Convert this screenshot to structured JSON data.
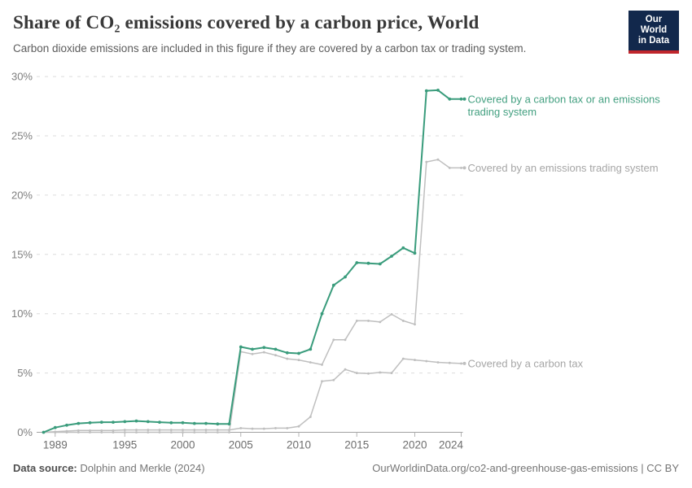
{
  "header": {
    "title": "Share of CO₂ emissions covered by a carbon price, World",
    "subtitle": "Carbon dioxide emissions are included in this figure if they are covered by a carbon tax or trading system.",
    "logo": {
      "line1": "Our World",
      "line2": "in Data"
    }
  },
  "chart_data": {
    "type": "line",
    "title": "Share of CO₂ emissions covered by a carbon price, World",
    "xlabel": "",
    "ylabel": "",
    "ylim": [
      0,
      30
    ],
    "grid": "horizontal dashed",
    "legend_position": "end-of-line labels",
    "x": [
      1988,
      1989,
      1990,
      1991,
      1992,
      1993,
      1994,
      1995,
      1996,
      1997,
      1998,
      1999,
      2000,
      2001,
      2002,
      2003,
      2004,
      2005,
      2006,
      2007,
      2008,
      2009,
      2010,
      2011,
      2012,
      2013,
      2014,
      2015,
      2016,
      2017,
      2018,
      2019,
      2020,
      2021,
      2022,
      2023,
      2024
    ],
    "xticks": [
      1989,
      1995,
      2000,
      2005,
      2010,
      2015,
      2020,
      2024
    ],
    "xtick_labels": [
      "1989",
      "1995",
      "2000",
      "2005",
      "2010",
      "2015",
      "2020",
      "2024"
    ],
    "yticks": [
      0,
      5,
      10,
      15,
      20,
      25,
      30
    ],
    "ytick_labels": [
      "0%",
      "5%",
      "10%",
      "15%",
      "20%",
      "25%",
      "30%"
    ],
    "style": {
      "grid_color": "#dcdcdc",
      "axis_color": "#a2a2a2",
      "tick_color": "#b4b4b4",
      "tick_label_color": "#6e6e6e"
    },
    "series": [
      {
        "id": "emissions-trading-system",
        "name": "Covered by an emissions trading system",
        "label_lines": [
          "Covered by an emissions trading system"
        ],
        "color": "#bfbfbf",
        "label_color": "#a6a6a6",
        "width": 1.5,
        "values": [
          0,
          0,
          0,
          0,
          0,
          0,
          0,
          0,
          0,
          0,
          0,
          0,
          0,
          0,
          0,
          0,
          0,
          6.8,
          6.6,
          6.75,
          6.5,
          6.2,
          6.1,
          5.9,
          5.7,
          7.8,
          7.8,
          9.4,
          9.4,
          9.3,
          9.95,
          9.4,
          9.1,
          22.8,
          23.0,
          22.3,
          22.3
        ]
      },
      {
        "id": "carbon-tax",
        "name": "Covered by a carbon tax",
        "label_lines": [
          "Covered by a carbon tax"
        ],
        "color": "#bfbfbf",
        "label_color": "#a6a6a6",
        "width": 1.5,
        "values": [
          0,
          0.05,
          0.1,
          0.15,
          0.15,
          0.15,
          0.15,
          0.2,
          0.2,
          0.2,
          0.2,
          0.2,
          0.2,
          0.2,
          0.2,
          0.2,
          0.2,
          0.35,
          0.3,
          0.3,
          0.35,
          0.35,
          0.5,
          1.3,
          4.3,
          4.4,
          5.3,
          5.0,
          4.95,
          5.05,
          5.0,
          6.2,
          6.1,
          6.0,
          5.9,
          5.85,
          5.8
        ]
      },
      {
        "id": "carbon-tax-or-ets",
        "name": "Covered by a carbon tax or an emissions trading system",
        "label_lines": [
          "Covered by a carbon tax or an emissions",
          "trading system"
        ],
        "color": "#3a9c7c",
        "label_color": "#44a081",
        "width": 2,
        "values": [
          0,
          0.4,
          0.6,
          0.75,
          0.8,
          0.85,
          0.85,
          0.9,
          0.95,
          0.9,
          0.85,
          0.8,
          0.8,
          0.75,
          0.75,
          0.7,
          0.7,
          7.2,
          7.0,
          7.15,
          7.0,
          6.7,
          6.65,
          7.0,
          10.0,
          12.4,
          13.1,
          14.3,
          14.25,
          14.2,
          14.85,
          15.55,
          15.1,
          28.8,
          28.85,
          28.1,
          28.1
        ]
      }
    ]
  },
  "footer": {
    "source_label": "Data source:",
    "source_value": " Dolphin and Merkle (2024)",
    "attribution": "OurWorldinData.org/co2-and-greenhouse-gas-emissions | CC BY"
  }
}
